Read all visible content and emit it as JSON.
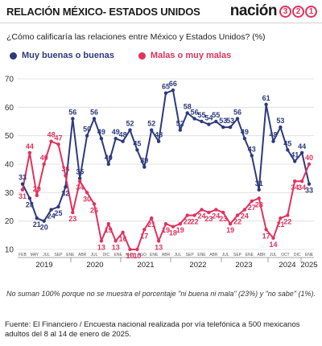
{
  "header": {
    "title": "RELACIÓN MÉXICO- ESTADOS UNIDOS",
    "logo_word": "nación",
    "logo_digits": [
      "3",
      "2",
      "1"
    ]
  },
  "question": "¿Cómo calificaría las relaciones entre México y Estados Unidos?  (%)",
  "colors": {
    "good": "#2d3a7c",
    "bad": "#e0325d",
    "grid": "#dcdcdc"
  },
  "note": "No suman 100% porque no se muestra el porcentaje \"ni buena ni mala\" (23%) y \"no sabe\" (1%).",
  "source": "Fuente: El Financiero / Encuesta nacional realizada por vía telefónica a 500 mexicanos adultos del 8 al 14 de enero de 2025.",
  "chart_data": {
    "type": "line",
    "ylim": [
      10,
      70
    ],
    "yticks": [
      10,
      20,
      30,
      40,
      50,
      60,
      70
    ],
    "grid": true,
    "legend": "top-left",
    "month_labels": [
      "FEB",
      "MAY",
      "JUL",
      "SEP",
      "ENE",
      "ABR",
      "JUL",
      "DIC",
      "ENE",
      "MAY",
      "AGO",
      "ENE",
      "ABR",
      "JUL",
      "SEP",
      "ENE",
      "ABR",
      "JUL",
      "SEP",
      "ENE",
      "ABR",
      "JUL",
      "OCT",
      "DIC",
      "ENE"
    ],
    "year_labels": [
      "2019",
      "2020",
      "2021",
      "2022",
      "2023",
      "2024",
      "2025"
    ],
    "series": [
      {
        "name": "Muy buenas o buenas",
        "values": [
          33,
          28,
          21,
          20,
          24,
          25,
          32,
          56,
          35,
          50,
          56,
          49,
          40,
          49,
          48,
          52,
          45,
          39,
          52,
          48,
          65,
          66,
          52,
          58,
          56,
          55,
          54,
          55,
          53,
          53,
          56,
          49,
          43,
          31,
          61,
          48,
          53,
          45,
          41,
          44,
          33
        ]
      },
      {
        "name": "Malas o muy malas",
        "values": [
          31,
          44,
          29,
          40,
          48,
          47,
          36,
          23,
          34,
          30,
          26,
          13,
          19,
          13,
          16,
          10,
          10,
          17,
          21,
          13,
          19,
          18,
          19,
          22,
          22,
          24,
          23,
          24,
          23,
          19,
          22,
          24,
          27,
          28,
          17,
          14,
          21,
          22,
          34,
          34,
          40
        ]
      }
    ]
  }
}
